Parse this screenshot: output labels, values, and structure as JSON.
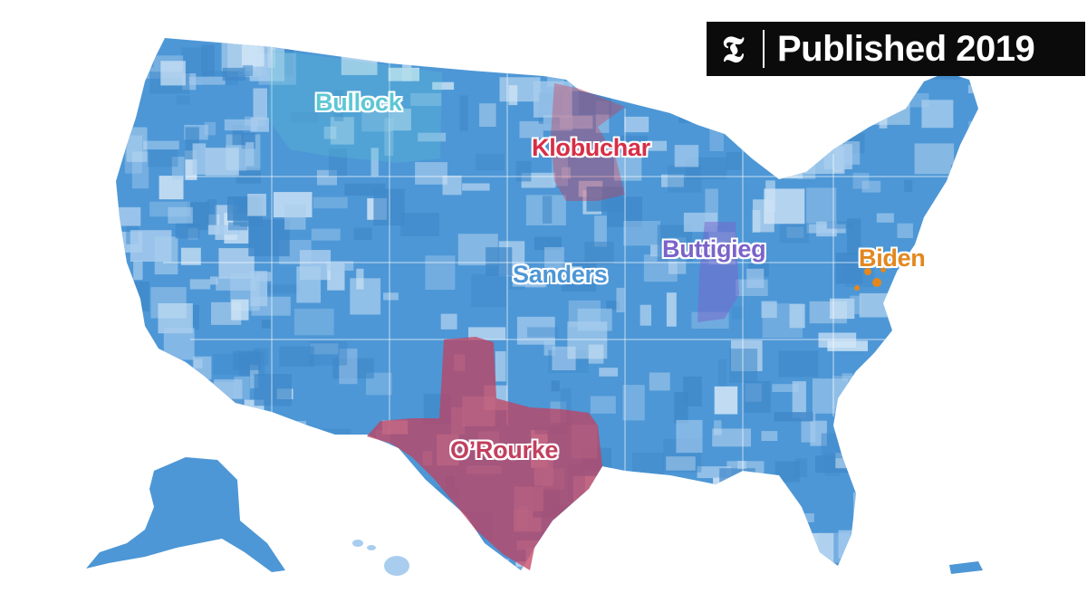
{
  "badge": {
    "logo_glyph": "T",
    "text": "Published 2019"
  },
  "colors": {
    "sanders": "#4d97d6",
    "sanders_light": "#a9cdee",
    "sanders_pale": "#d6e8f7",
    "bullock": "#5ec7d4",
    "klobuchar": "#d82e46",
    "buttigieg": "#7a63c9",
    "biden": "#e3871e",
    "orourke": "#c2405f"
  },
  "legend_labels": [
    {
      "key": "bullock",
      "text": "Bullock"
    },
    {
      "key": "klobuchar",
      "text": "Klobuchar"
    },
    {
      "key": "buttigieg",
      "text": "Buttigieg"
    },
    {
      "key": "biden",
      "text": "Biden"
    },
    {
      "key": "sanders",
      "text": "Sanders"
    },
    {
      "key": "orourke",
      "text": "O’Rourke"
    }
  ]
}
